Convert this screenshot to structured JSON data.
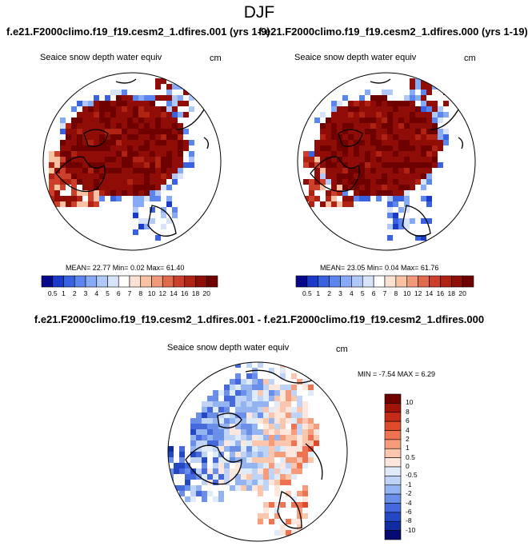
{
  "title": "DJF",
  "panels": [
    {
      "run": "f.e21.F2000climo.f19_f19.cesm2_1.dfires.001 (yrs 1-9)",
      "variable": "Seaice snow depth water equiv",
      "units": "cm",
      "stats": "MEAN=  22.77  Min=   0.02  Max=  61.40"
    },
    {
      "run": "f.e21.F2000climo.f19_f19.cesm2_1.dfires.000 (yrs 1-19)",
      "variable": "Seaice snow depth water equiv",
      "units": "cm",
      "stats": "MEAN=  23.05  Min=   0.04  Max=  61.76"
    }
  ],
  "difference": {
    "title": "f.e21.F2000climo.f19_f19.cesm2_1.dfires.001 - f.e21.F2000climo.f19_f19.cesm2_1.dfires.000",
    "variable": "Seaice snow depth water equiv",
    "units": "cm",
    "stats": "MIN =  -7.54 MAX =   6.29"
  },
  "chart_data": [
    {
      "type": "heatmap",
      "projection": "north polar stereographic",
      "title": "Seaice snow depth water equiv",
      "units": "cm",
      "mean": 22.77,
      "min": 0.02,
      "max": 61.4,
      "colorbar_levels": [
        "0.5",
        "1",
        "2",
        "3",
        "4",
        "5",
        "6",
        "7",
        "8",
        "10",
        "12",
        "14",
        "16",
        "18",
        "20"
      ],
      "colorbar_colors": [
        "#08088a",
        "#1a3bc9",
        "#3a62e0",
        "#5b86ee",
        "#86aaf5",
        "#afc8f8",
        "#d6e3fb",
        "#ffffff",
        "#fde2d3",
        "#f8c1a4",
        "#f09a77",
        "#e06a4c",
        "#cc3f2a",
        "#b02313",
        "#8f0d06",
        "#6e0000"
      ]
    },
    {
      "type": "heatmap",
      "projection": "north polar stereographic",
      "title": "Seaice snow depth water equiv",
      "units": "cm",
      "mean": 23.05,
      "min": 0.04,
      "max": 61.76,
      "colorbar_levels": [
        "0.5",
        "1",
        "2",
        "3",
        "4",
        "5",
        "6",
        "7",
        "8",
        "10",
        "12",
        "14",
        "16",
        "18",
        "20"
      ],
      "colorbar_colors": [
        "#08088a",
        "#1a3bc9",
        "#3a62e0",
        "#5b86ee",
        "#86aaf5",
        "#afc8f8",
        "#d6e3fb",
        "#ffffff",
        "#fde2d3",
        "#f8c1a4",
        "#f09a77",
        "#e06a4c",
        "#cc3f2a",
        "#b02313",
        "#8f0d06",
        "#6e0000"
      ]
    },
    {
      "type": "heatmap",
      "projection": "north polar stereographic",
      "title": "Seaice snow depth water equiv",
      "units": "cm",
      "min": -7.54,
      "max": 6.29,
      "colorbar_levels": [
        "10",
        "8",
        "6",
        "4",
        "2",
        "1",
        "0.5",
        "0",
        "-0.5",
        "-1",
        "-2",
        "-4",
        "-6",
        "-8",
        "-10"
      ],
      "colorbar_colors": [
        "#6e0000",
        "#9e1408",
        "#c42b17",
        "#de4a2c",
        "#ee7350",
        "#f69c7b",
        "#fbc6ae",
        "#fde7dc",
        "#e0ebfa",
        "#bfd3f6",
        "#93b3f1",
        "#6b8fe8",
        "#4569dc",
        "#2447c2",
        "#112ba0",
        "#050a70"
      ]
    }
  ]
}
